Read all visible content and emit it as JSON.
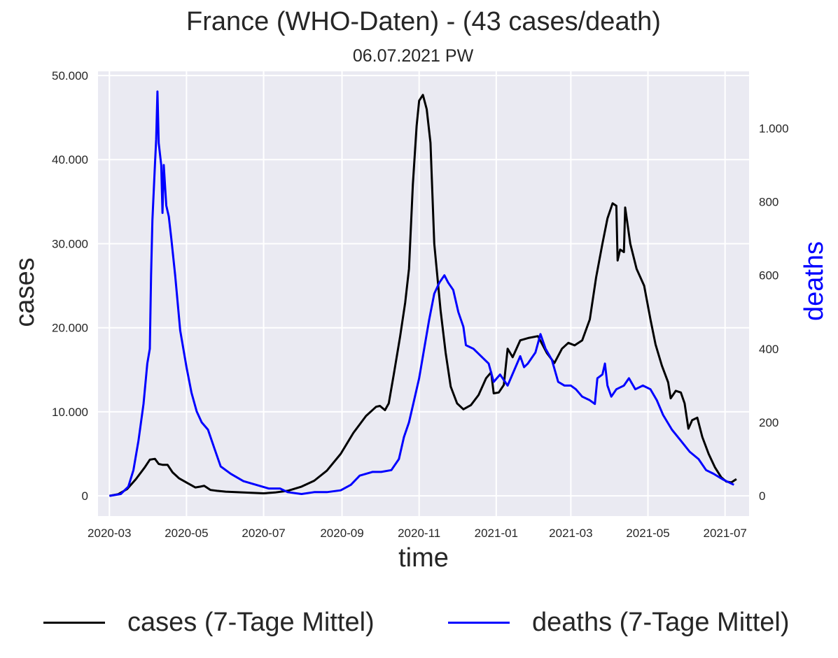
{
  "chart_data": {
    "type": "line",
    "title": "France (WHO-Daten) - (43 cases/death)",
    "subtitle": "06.07.2021 PW",
    "xlabel": "time",
    "ylabel_left": "cases",
    "ylabel_right": "deaths",
    "xlim": [
      "2020-02-21",
      "2021-07-20"
    ],
    "ylim_left": [
      -2400,
      50500
    ],
    "ylim_right": [
      -55,
      1155
    ],
    "x_ticks": [
      "2020-03",
      "2020-05",
      "2020-07",
      "2020-09",
      "2020-11",
      "2021-01",
      "2021-03",
      "2021-05",
      "2021-07"
    ],
    "y_ticks_left": [
      {
        "value": 0,
        "label": "0"
      },
      {
        "value": 10000,
        "label": "10.000"
      },
      {
        "value": 20000,
        "label": "20.000"
      },
      {
        "value": 30000,
        "label": "30.000"
      },
      {
        "value": 40000,
        "label": "40.000"
      },
      {
        "value": 50000,
        "label": "50.000"
      }
    ],
    "y_ticks_right": [
      {
        "value": 0,
        "label": "0"
      },
      {
        "value": 200,
        "label": "200"
      },
      {
        "value": 400,
        "label": "400"
      },
      {
        "value": 600,
        "label": "600"
      },
      {
        "value": 800,
        "label": "800"
      },
      {
        "value": 1000,
        "label": "1.000"
      }
    ],
    "grid": true,
    "legend_position": "bottom",
    "series": [
      {
        "name": "cases (7-Tage Mittel)",
        "axis": "left",
        "color": "#000000",
        "points": [
          [
            "2020-03-01",
            0
          ],
          [
            "2020-03-08",
            200
          ],
          [
            "2020-03-15",
            800
          ],
          [
            "2020-03-22",
            2000
          ],
          [
            "2020-03-29",
            3400
          ],
          [
            "2020-04-02",
            4300
          ],
          [
            "2020-04-06",
            4400
          ],
          [
            "2020-04-09",
            3800
          ],
          [
            "2020-04-12",
            3700
          ],
          [
            "2020-04-16",
            3700
          ],
          [
            "2020-04-20",
            2800
          ],
          [
            "2020-04-25",
            2100
          ],
          [
            "2020-05-02",
            1500
          ],
          [
            "2020-05-08",
            1000
          ],
          [
            "2020-05-12",
            1100
          ],
          [
            "2020-05-15",
            1200
          ],
          [
            "2020-05-20",
            700
          ],
          [
            "2020-05-25",
            600
          ],
          [
            "2020-06-01",
            500
          ],
          [
            "2020-06-15",
            400
          ],
          [
            "2020-07-01",
            300
          ],
          [
            "2020-07-10",
            400
          ],
          [
            "2020-07-20",
            600
          ],
          [
            "2020-07-31",
            1100
          ],
          [
            "2020-08-10",
            1800
          ],
          [
            "2020-08-20",
            3000
          ],
          [
            "2020-08-31",
            5000
          ],
          [
            "2020-09-10",
            7500
          ],
          [
            "2020-09-20",
            9500
          ],
          [
            "2020-09-28",
            10600
          ],
          [
            "2020-10-01",
            10700
          ],
          [
            "2020-10-05",
            10200
          ],
          [
            "2020-10-08",
            11000
          ],
          [
            "2020-10-12",
            14500
          ],
          [
            "2020-10-17",
            19000
          ],
          [
            "2020-10-21",
            23000
          ],
          [
            "2020-10-24",
            27000
          ],
          [
            "2020-10-27",
            37000
          ],
          [
            "2020-10-30",
            44000
          ],
          [
            "2020-11-01",
            47000
          ],
          [
            "2020-11-04",
            47700
          ],
          [
            "2020-11-07",
            46000
          ],
          [
            "2020-11-10",
            42000
          ],
          [
            "2020-11-13",
            30000
          ],
          [
            "2020-11-18",
            22000
          ],
          [
            "2020-11-22",
            17000
          ],
          [
            "2020-11-26",
            13000
          ],
          [
            "2020-12-01",
            11000
          ],
          [
            "2020-12-06",
            10300
          ],
          [
            "2020-12-12",
            10800
          ],
          [
            "2020-12-18",
            12000
          ],
          [
            "2020-12-24",
            14000
          ],
          [
            "2020-12-28",
            14700
          ],
          [
            "2020-12-30",
            12200
          ],
          [
            "2021-01-03",
            12300
          ],
          [
            "2021-01-07",
            13200
          ],
          [
            "2021-01-10",
            17500
          ],
          [
            "2021-01-14",
            16500
          ],
          [
            "2021-01-20",
            18500
          ],
          [
            "2021-01-27",
            18800
          ],
          [
            "2021-02-03",
            19000
          ],
          [
            "2021-02-10",
            17000
          ],
          [
            "2021-02-16",
            15800
          ],
          [
            "2021-02-22",
            17500
          ],
          [
            "2021-02-27",
            18200
          ],
          [
            "2021-03-04",
            17900
          ],
          [
            "2021-03-10",
            18500
          ],
          [
            "2021-03-16",
            21000
          ],
          [
            "2021-03-21",
            26000
          ],
          [
            "2021-03-26",
            30000
          ],
          [
            "2021-03-30",
            33000
          ],
          [
            "2021-04-03",
            34800
          ],
          [
            "2021-04-06",
            34500
          ],
          [
            "2021-04-07",
            28000
          ],
          [
            "2021-04-09",
            29300
          ],
          [
            "2021-04-12",
            29000
          ],
          [
            "2021-04-13",
            34300
          ],
          [
            "2021-04-17",
            30000
          ],
          [
            "2021-04-22",
            27000
          ],
          [
            "2021-04-28",
            25000
          ],
          [
            "2021-05-03",
            21000
          ],
          [
            "2021-05-07",
            18000
          ],
          [
            "2021-05-12",
            15500
          ],
          [
            "2021-05-17",
            13500
          ],
          [
            "2021-05-19",
            11600
          ],
          [
            "2021-05-23",
            12500
          ],
          [
            "2021-05-27",
            12300
          ],
          [
            "2021-05-30",
            11000
          ],
          [
            "2021-06-02",
            8000
          ],
          [
            "2021-06-05",
            9000
          ],
          [
            "2021-06-09",
            9300
          ],
          [
            "2021-06-13",
            7000
          ],
          [
            "2021-06-18",
            5000
          ],
          [
            "2021-06-23",
            3400
          ],
          [
            "2021-06-28",
            2200
          ],
          [
            "2021-07-02",
            1700
          ],
          [
            "2021-07-06",
            1600
          ],
          [
            "2021-07-10",
            2000
          ]
        ]
      },
      {
        "name": "deaths (7-Tage Mittel)",
        "axis": "right",
        "color": "#0000ff",
        "points": [
          [
            "2020-03-01",
            0
          ],
          [
            "2020-03-10",
            5
          ],
          [
            "2020-03-16",
            25
          ],
          [
            "2020-03-20",
            70
          ],
          [
            "2020-03-24",
            150
          ],
          [
            "2020-03-28",
            250
          ],
          [
            "2020-03-31",
            360
          ],
          [
            "2020-04-02",
            400
          ],
          [
            "2020-04-03",
            600
          ],
          [
            "2020-04-04",
            750
          ],
          [
            "2020-04-06",
            900
          ],
          [
            "2020-04-07",
            970
          ],
          [
            "2020-04-08",
            1100
          ],
          [
            "2020-04-09",
            960
          ],
          [
            "2020-04-11",
            900
          ],
          [
            "2020-04-12",
            770
          ],
          [
            "2020-04-13",
            900
          ],
          [
            "2020-04-15",
            790
          ],
          [
            "2020-04-17",
            760
          ],
          [
            "2020-04-19",
            700
          ],
          [
            "2020-04-22",
            600
          ],
          [
            "2020-04-26",
            450
          ],
          [
            "2020-05-01",
            350
          ],
          [
            "2020-05-05",
            280
          ],
          [
            "2020-05-09",
            230
          ],
          [
            "2020-05-13",
            200
          ],
          [
            "2020-05-18",
            180
          ],
          [
            "2020-05-23",
            130
          ],
          [
            "2020-05-28",
            80
          ],
          [
            "2020-06-05",
            60
          ],
          [
            "2020-06-15",
            40
          ],
          [
            "2020-06-25",
            30
          ],
          [
            "2020-07-05",
            20
          ],
          [
            "2020-07-14",
            20
          ],
          [
            "2020-07-20",
            10
          ],
          [
            "2020-07-31",
            5
          ],
          [
            "2020-08-10",
            10
          ],
          [
            "2020-08-20",
            10
          ],
          [
            "2020-08-31",
            15
          ],
          [
            "2020-09-08",
            30
          ],
          [
            "2020-09-15",
            55
          ],
          [
            "2020-09-25",
            65
          ],
          [
            "2020-10-02",
            65
          ],
          [
            "2020-10-10",
            70
          ],
          [
            "2020-10-16",
            100
          ],
          [
            "2020-10-20",
            160
          ],
          [
            "2020-10-24",
            200
          ],
          [
            "2020-10-28",
            260
          ],
          [
            "2020-11-01",
            320
          ],
          [
            "2020-11-05",
            400
          ],
          [
            "2020-11-09",
            480
          ],
          [
            "2020-11-13",
            550
          ],
          [
            "2020-11-17",
            580
          ],
          [
            "2020-11-21",
            600
          ],
          [
            "2020-11-24",
            580
          ],
          [
            "2020-11-28",
            560
          ],
          [
            "2020-12-02",
            500
          ],
          [
            "2020-12-06",
            460
          ],
          [
            "2020-12-08",
            410
          ],
          [
            "2020-12-14",
            400
          ],
          [
            "2020-12-20",
            380
          ],
          [
            "2020-12-26",
            360
          ],
          [
            "2020-12-30",
            310
          ],
          [
            "2021-01-04",
            330
          ],
          [
            "2021-01-10",
            300
          ],
          [
            "2021-01-15",
            340
          ],
          [
            "2021-01-20",
            380
          ],
          [
            "2021-01-23",
            350
          ],
          [
            "2021-01-26",
            360
          ],
          [
            "2021-02-01",
            390
          ],
          [
            "2021-02-05",
            440
          ],
          [
            "2021-02-09",
            400
          ],
          [
            "2021-02-14",
            370
          ],
          [
            "2021-02-19",
            310
          ],
          [
            "2021-02-24",
            300
          ],
          [
            "2021-03-01",
            300
          ],
          [
            "2021-03-05",
            290
          ],
          [
            "2021-03-10",
            270
          ],
          [
            "2021-03-16",
            260
          ],
          [
            "2021-03-20",
            250
          ],
          [
            "2021-03-22",
            320
          ],
          [
            "2021-03-26",
            330
          ],
          [
            "2021-03-28",
            360
          ],
          [
            "2021-03-30",
            300
          ],
          [
            "2021-04-02",
            270
          ],
          [
            "2021-04-06",
            290
          ],
          [
            "2021-04-12",
            300
          ],
          [
            "2021-04-16",
            320
          ],
          [
            "2021-04-21",
            290
          ],
          [
            "2021-04-27",
            300
          ],
          [
            "2021-05-03",
            290
          ],
          [
            "2021-05-08",
            260
          ],
          [
            "2021-05-13",
            220
          ],
          [
            "2021-05-20",
            180
          ],
          [
            "2021-05-27",
            150
          ],
          [
            "2021-06-03",
            120
          ],
          [
            "2021-06-10",
            100
          ],
          [
            "2021-06-16",
            70
          ],
          [
            "2021-06-22",
            60
          ],
          [
            "2021-06-29",
            45
          ],
          [
            "2021-07-05",
            35
          ],
          [
            "2021-07-08",
            30
          ]
        ]
      }
    ]
  }
}
